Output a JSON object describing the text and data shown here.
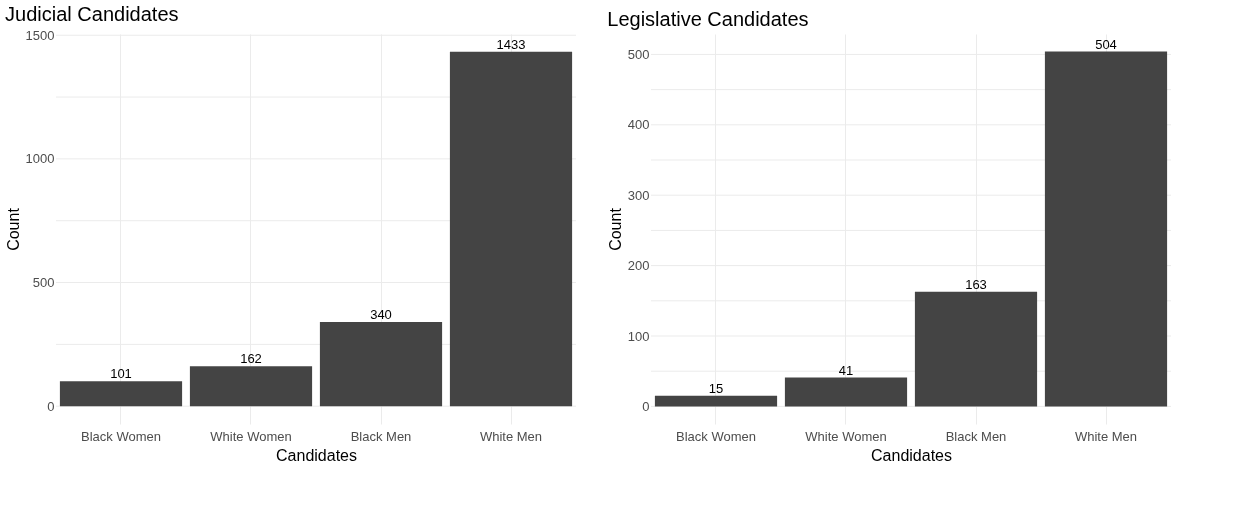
{
  "chart_data": [
    {
      "type": "bar",
      "title": "Judicial Candidates",
      "xlabel": "Candidates",
      "ylabel": "Count",
      "categories": [
        "Black Women",
        "White Women",
        "Black Men",
        "White Men"
      ],
      "values": [
        101,
        162,
        340,
        1433
      ],
      "color": "#444444",
      "data_labels": true,
      "ylim": [
        -72,
        1505
      ],
      "yticks": [
        0,
        {
          "value": 250,
          "label": null
        },
        500,
        {
          "value": 750,
          "label": null
        },
        1000,
        {
          "value": 1250,
          "label": null
        },
        1500
      ],
      "grid": true
    },
    {
      "type": "bar",
      "title": "Legislative Candidates",
      "xlabel": "Candidates",
      "ylabel": "Count",
      "categories": [
        "Black Women",
        "White Women",
        "Black Men",
        "White Men"
      ],
      "values": [
        15,
        41,
        163,
        504
      ],
      "color": "#444444",
      "data_labels": true,
      "ylim": [
        -25,
        529
      ],
      "yticks": [
        0,
        {
          "value": 50,
          "label": null
        },
        100,
        {
          "value": 150,
          "label": null
        },
        200,
        {
          "value": 250,
          "label": null
        },
        300,
        {
          "value": 350,
          "label": null
        },
        400,
        {
          "value": 450,
          "label": null
        },
        500
      ],
      "grid": true
    }
  ]
}
